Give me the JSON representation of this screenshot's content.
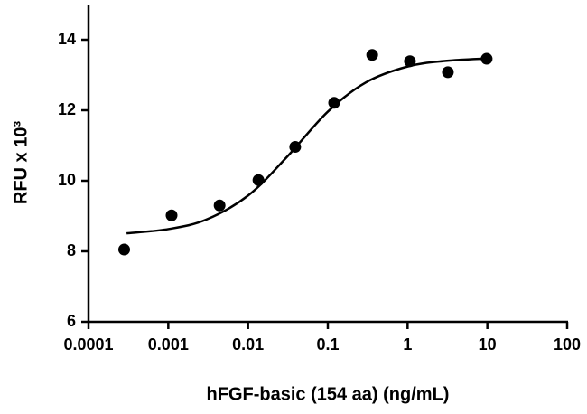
{
  "chart_data": {
    "type": "scatter",
    "xlabel": "hFGF-basic (154 aa) (ng/mL)",
    "ylabel": "RFU x 10³",
    "xscale": "log",
    "xlim": [
      0.0001,
      100
    ],
    "xticks": [
      0.0001,
      0.001,
      0.01,
      0.1,
      1,
      10,
      100
    ],
    "ylim": [
      6,
      15
    ],
    "yticks": [
      6,
      8,
      10,
      12,
      14
    ],
    "grid": false,
    "series": [
      {
        "type": "scatter",
        "color": "#000000",
        "x": [
          0.00028,
          0.0011,
          0.0044,
          0.0135,
          0.039,
          0.12,
          0.36,
          1.07,
          3.2,
          9.8
        ],
        "values": [
          8.05,
          9.02,
          9.3,
          10.02,
          10.96,
          12.21,
          13.57,
          13.39,
          13.08,
          13.46
        ]
      },
      {
        "type": "line",
        "color": "#000000",
        "x": [
          0.0003,
          0.001,
          0.003,
          0.01,
          0.03,
          0.1,
          0.3,
          1,
          3,
          10
        ],
        "values": [
          8.51,
          8.63,
          8.9,
          9.58,
          10.65,
          11.96,
          12.79,
          13.24,
          13.4,
          13.47
        ]
      }
    ]
  }
}
